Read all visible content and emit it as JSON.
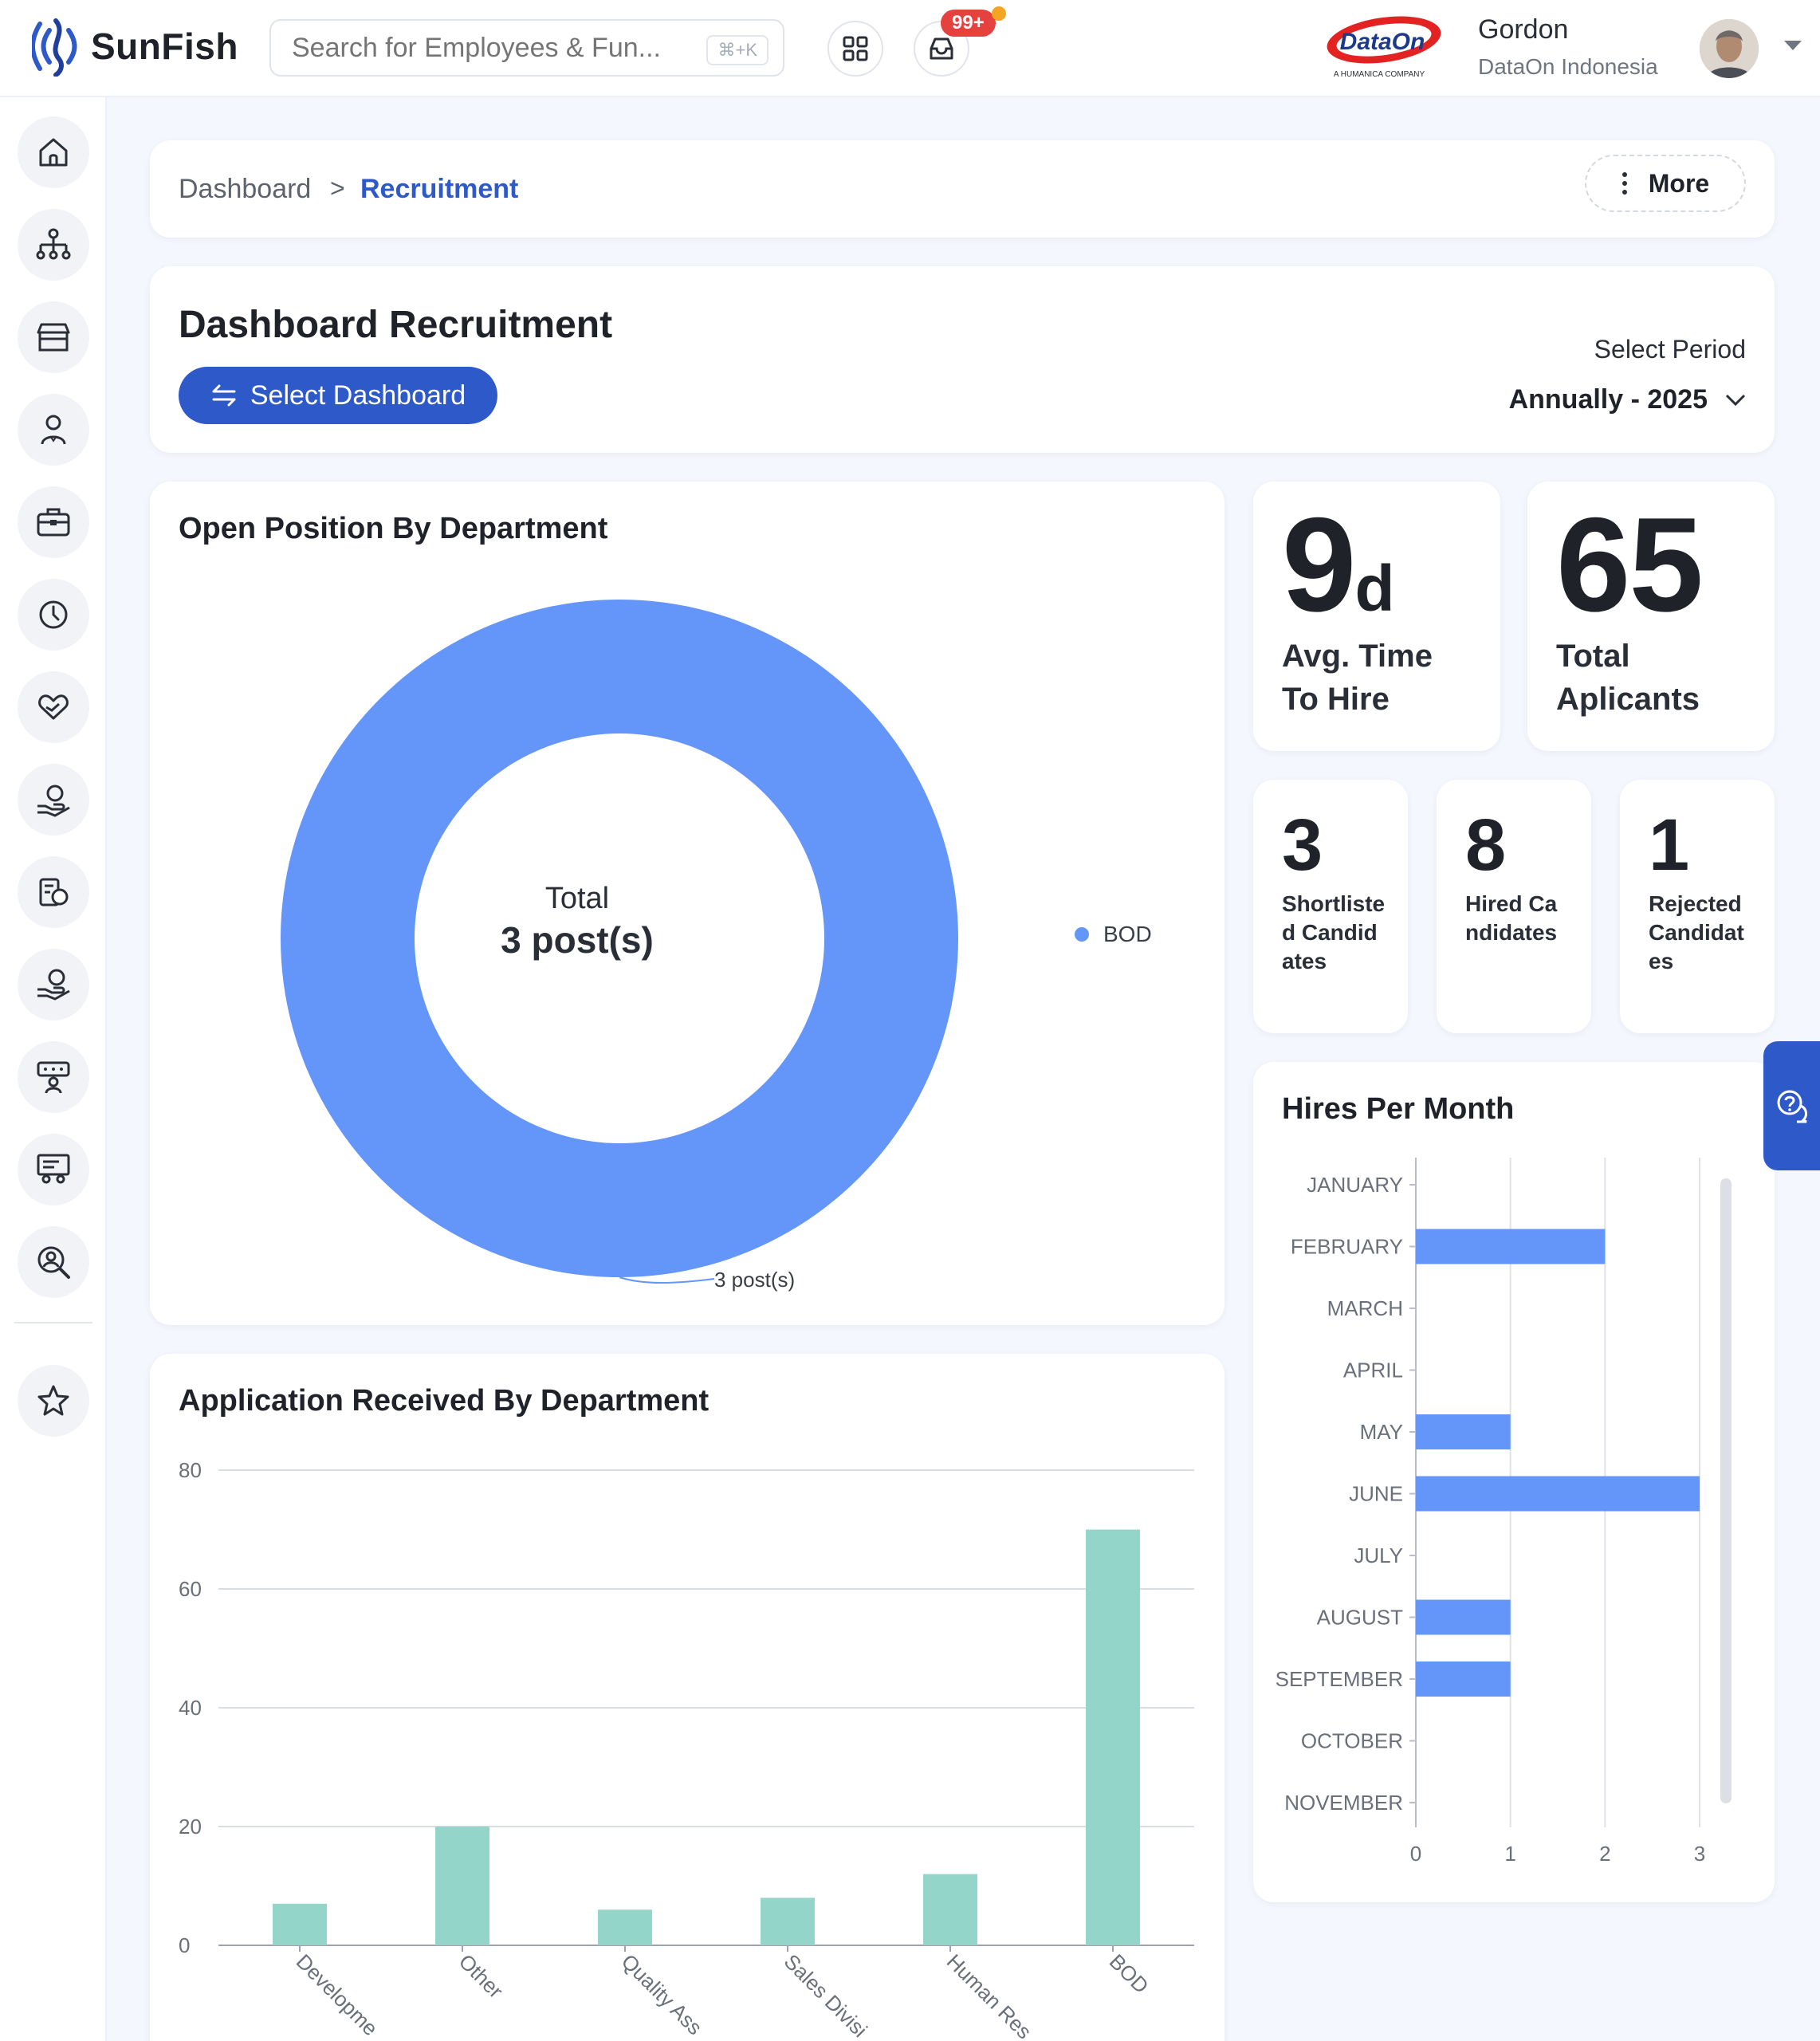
{
  "app": {
    "brand_name": "SunFish",
    "search_placeholder": "Search for Employees & Fun...",
    "search_shortcut": "⌘+K",
    "notification_count": "99+",
    "company_logo_text": "DataOn",
    "company_logo_tagline": "A HUMANICA COMPANY",
    "user_name": "Gordon",
    "user_company": "DataOn Indonesia",
    "accent_color": "#2e59c8"
  },
  "sidebar": {
    "items": [
      {
        "icon": "home-icon"
      },
      {
        "icon": "org-structure-icon"
      },
      {
        "icon": "store-icon"
      },
      {
        "icon": "employee-icon"
      },
      {
        "icon": "briefcase-icon"
      },
      {
        "icon": "clock-icon"
      },
      {
        "icon": "heart-hand-icon"
      },
      {
        "icon": "benefit-hand-icon"
      },
      {
        "icon": "payroll-coins-icon"
      },
      {
        "icon": "salary-hand-icon"
      },
      {
        "icon": "training-icon"
      },
      {
        "icon": "presentation-icon"
      },
      {
        "icon": "recruitment-search-icon"
      },
      {
        "icon": "star-icon"
      }
    ]
  },
  "breadcrumb": {
    "home": "Dashboard",
    "separator": ">",
    "current": "Recruitment",
    "more_label": "More"
  },
  "header": {
    "title": "Dashboard Recruitment",
    "select_dashboard_label": "Select Dashboard",
    "period_label": "Select Period",
    "period_value": "Annually - 2025"
  },
  "open_positions": {
    "title": "Open Position By Department",
    "center_label": "Total",
    "center_value": "3 post(s)",
    "slice_label": "3 post(s)",
    "legend": [
      {
        "name": "BOD",
        "color": "#6495f8"
      }
    ]
  },
  "kpis": {
    "avg_time_value": "9",
    "avg_time_unit": "d",
    "avg_time_label_1": "Avg. Time",
    "avg_time_label_2": "To Hire",
    "total_applicants_value": "65",
    "total_applicants_label_1": "Total",
    "total_applicants_label_2": "Aplicants",
    "shortlisted_value": "3",
    "shortlisted_label": "Shortlisted Candidates",
    "hired_value": "8",
    "hired_label": "Hired Candidates",
    "rejected_value": "1",
    "rejected_label": "Rejected Candidates"
  },
  "chart_data": [
    {
      "type": "pie",
      "title": "Open Position By Department",
      "categories": [
        "BOD"
      ],
      "values": [
        3
      ],
      "colors": [
        "#6495f8"
      ],
      "donut": true
    },
    {
      "type": "bar",
      "orientation": "horizontal",
      "title": "Hires Per Month",
      "categories": [
        "JANUARY",
        "FEBRUARY",
        "MARCH",
        "APRIL",
        "MAY",
        "JUNE",
        "JULY",
        "AUGUST",
        "SEPTEMBER",
        "OCTOBER",
        "NOVEMBER"
      ],
      "values": [
        0,
        2,
        0,
        0,
        1,
        3,
        0,
        1,
        1,
        0,
        0
      ],
      "xlim": [
        0,
        3
      ],
      "xticks": [
        0,
        1,
        2,
        3
      ],
      "color": "#6495f8",
      "grid": true
    },
    {
      "type": "bar",
      "title": "Application Received By Department",
      "categories": [
        "Developme",
        "Other",
        "Quality Ass",
        "Sales Divisi",
        "Human Res",
        "BOD"
      ],
      "values": [
        7,
        20,
        6,
        8,
        12,
        70
      ],
      "ylim": [
        0,
        80
      ],
      "yticks": [
        0,
        20,
        40,
        60,
        80
      ],
      "color": "#93d5c8",
      "grid": true
    }
  ]
}
